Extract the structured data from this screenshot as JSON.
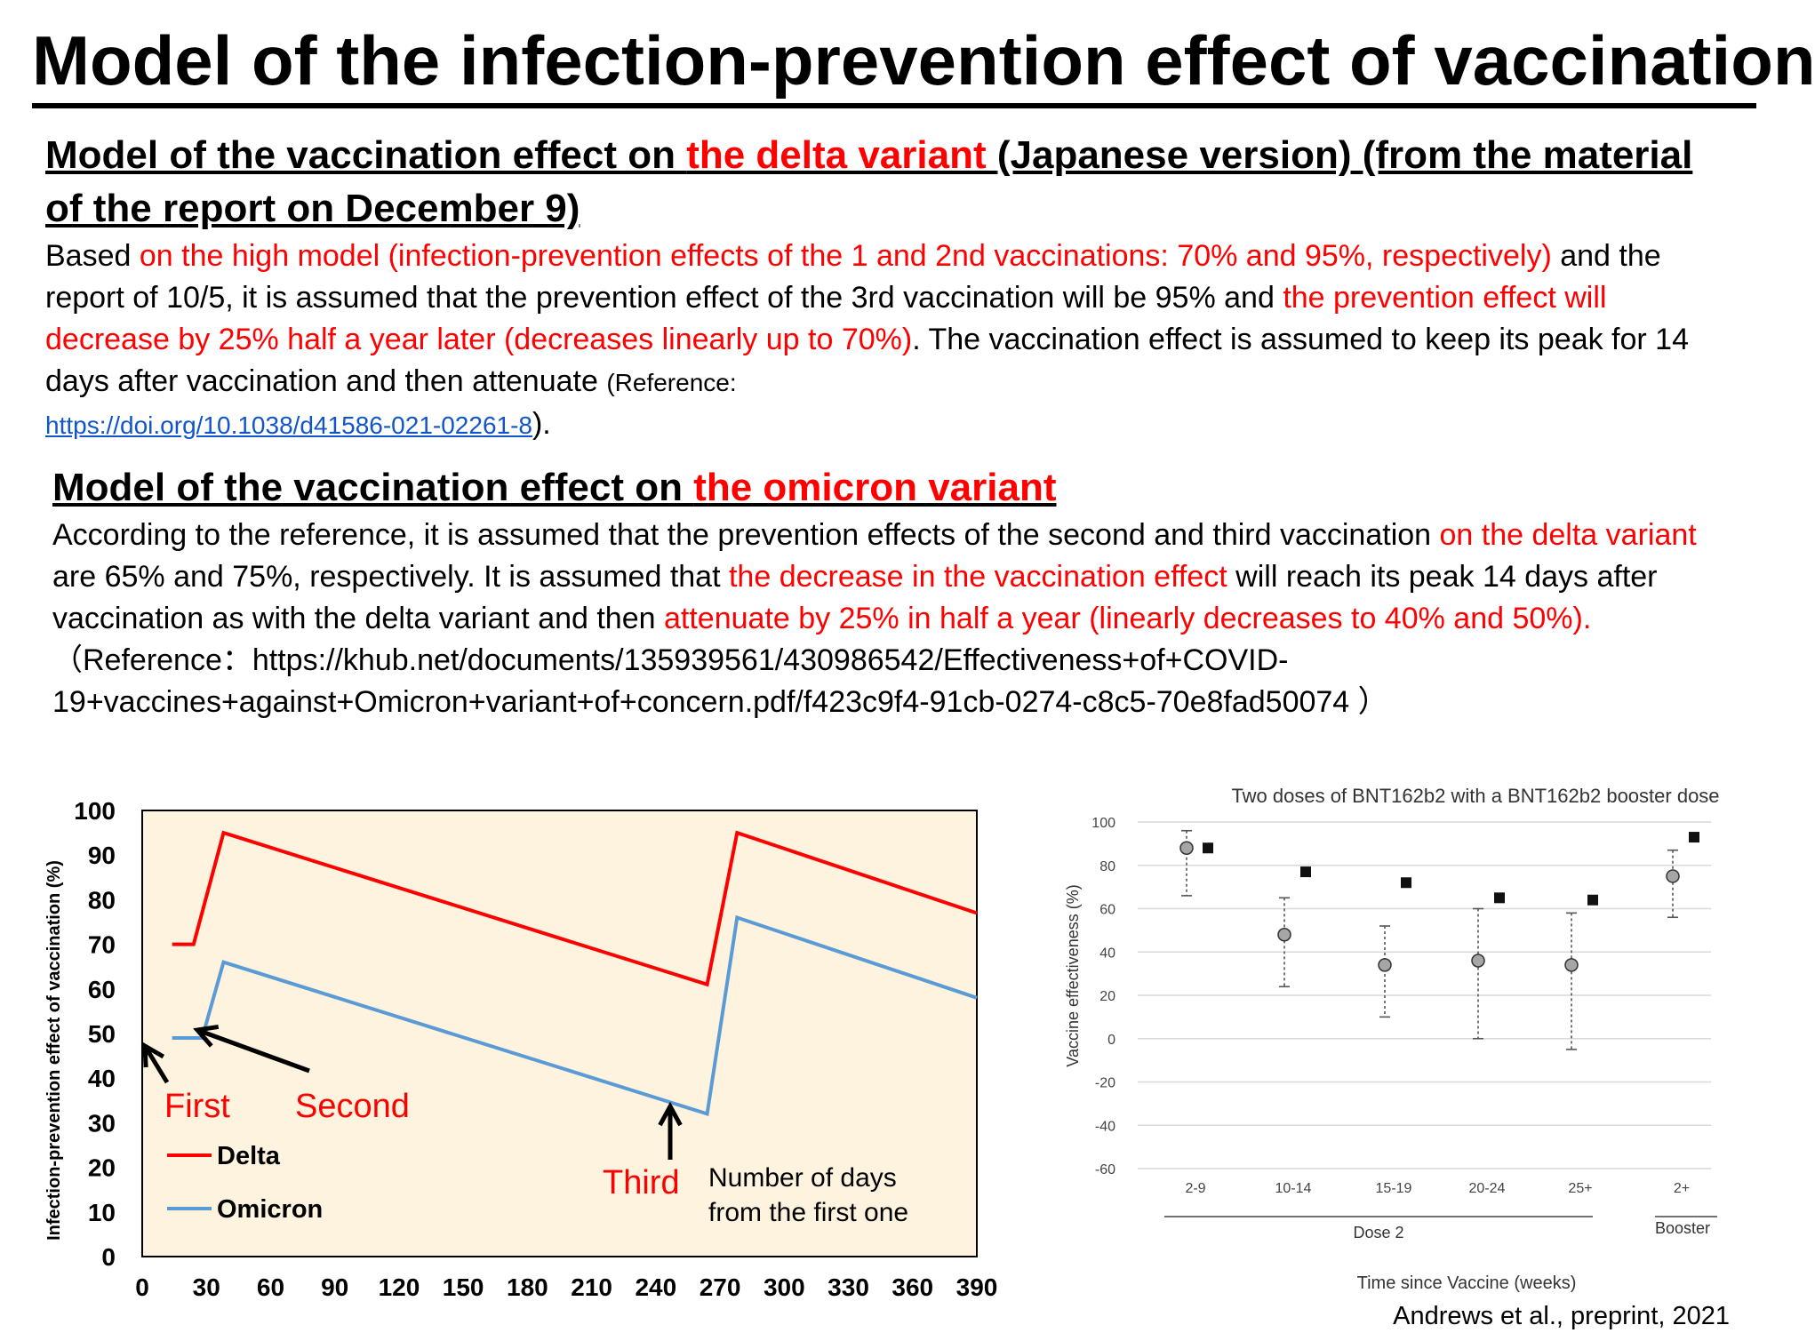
{
  "page": {
    "title": "Model of the infection-prevention effect of vaccination"
  },
  "delta_section": {
    "heading_part1": "Model of the vaccination effect on ",
    "heading_red": "the delta variant ",
    "heading_part2": "(Japanese version) (from the material of the report on December 9)",
    "p1": "Based ",
    "p2": "on the high model (infection-prevention effects of the 1 and 2nd vaccinations: 70% and 95%, respectively)",
    "p3": " and the report of 10/5, it is assumed that the prevention effect of the 3rd vaccination will be 95% and ",
    "p4": "the prevention effect will decrease by 25% half a year later (decreases linearly up to 70%)",
    "p5": ". The vaccination effect is assumed to keep its peak for 14 days after vaccination and then attenuate ",
    "ref_open": "(Reference: ",
    "ref_link": "https://doi.org/10.1038/d41586-021-02261-8",
    "ref_close": ")."
  },
  "omicron_section": {
    "heading_part1": "Model of the vaccination effect on ",
    "heading_red": "the omicron variant",
    "p1": "According to the reference, it is assumed that the prevention effects of the second and third vaccination ",
    "p2": "on the delta variant",
    "p3": " are 65% and 75%, respectively. It is assumed that ",
    "p4": "the decrease in the vaccination effect",
    "p5": " will reach its peak 14 days after vaccination as with the delta variant and then ",
    "p6": "attenuate by 25% in half a year (linearly decreases to 40% and 50%).",
    "ref_line1": "（Reference：https://khub.net/documents/135939561/430986542/Effectiveness+of+COVID-",
    "ref_line2": "19+vaccines+against+Omicron+variant+of+concern.pdf/f423c9f4-91cb-0274-c8c5-70e8fad50074 ）"
  },
  "colors": {
    "delta": "#ff0000",
    "omicron": "#5b9bd5",
    "plot_bg": "#fdf3de",
    "accent_text": "#ff0000"
  },
  "chart_data": [
    {
      "type": "line",
      "ylabel": "Infection-prevention effect of vaccination (%)",
      "xlabel": "Number of days from the first one",
      "xlabel_line1": "Number of days",
      "xlabel_line2": "from the first one",
      "xlim": [
        0,
        390
      ],
      "ylim": [
        0,
        100
      ],
      "xticks": [
        0,
        30,
        60,
        90,
        120,
        150,
        180,
        210,
        240,
        270,
        300,
        330,
        360,
        390
      ],
      "yticks": [
        0,
        10,
        20,
        30,
        40,
        50,
        60,
        70,
        80,
        90,
        100
      ],
      "grid": false,
      "legend_position": "bottom-left",
      "series": [
        {
          "name": "Delta",
          "color": "#ff0000",
          "x": [
            14,
            24,
            38,
            264,
            278,
            390
          ],
          "y": [
            70,
            70,
            95,
            61,
            95,
            77
          ]
        },
        {
          "name": "Omicron",
          "color": "#5b9bd5",
          "x": [
            14,
            24,
            28,
            38,
            264,
            278,
            390
          ],
          "y": [
            49,
            49,
            49,
            66,
            32,
            76,
            58
          ]
        }
      ],
      "annotations": [
        {
          "text": "First",
          "color": "#ff0000"
        },
        {
          "text": "Second",
          "color": "#ff0000"
        },
        {
          "text": "Third",
          "color": "#ff0000"
        }
      ]
    },
    {
      "type": "scatter",
      "title": "Two doses of BNT162b2 with a BNT162b2 booster dose",
      "ylabel": "Vaccine effectiveness (%)",
      "xlabel": "Time since Vaccine (weeks)",
      "ylim": [
        -60,
        100
      ],
      "yticks": [
        100,
        80,
        60,
        40,
        20,
        0,
        -20,
        -40,
        -60
      ],
      "categories": [
        "2-9",
        "10-14",
        "15-19",
        "20-24",
        "25+",
        "2+"
      ],
      "group_labels": [
        {
          "label": "Dose 2",
          "categories": [
            "2-9",
            "10-14",
            "15-19",
            "20-24",
            "25+"
          ]
        },
        {
          "label": "Booster",
          "categories": [
            "2+"
          ]
        }
      ],
      "grid": true,
      "series": [
        {
          "name": "",
          "marker": "circle",
          "values": [
            88,
            48,
            34,
            36,
            34,
            75
          ],
          "ci_low": [
            66,
            24,
            10,
            0,
            -5,
            56
          ],
          "ci_high": [
            96,
            65,
            52,
            60,
            58,
            87
          ]
        },
        {
          "name": "",
          "marker": "square",
          "values": [
            88,
            77,
            72,
            65,
            64,
            93
          ]
        }
      ]
    }
  ],
  "source": "Andrews et al., preprint, 2021"
}
